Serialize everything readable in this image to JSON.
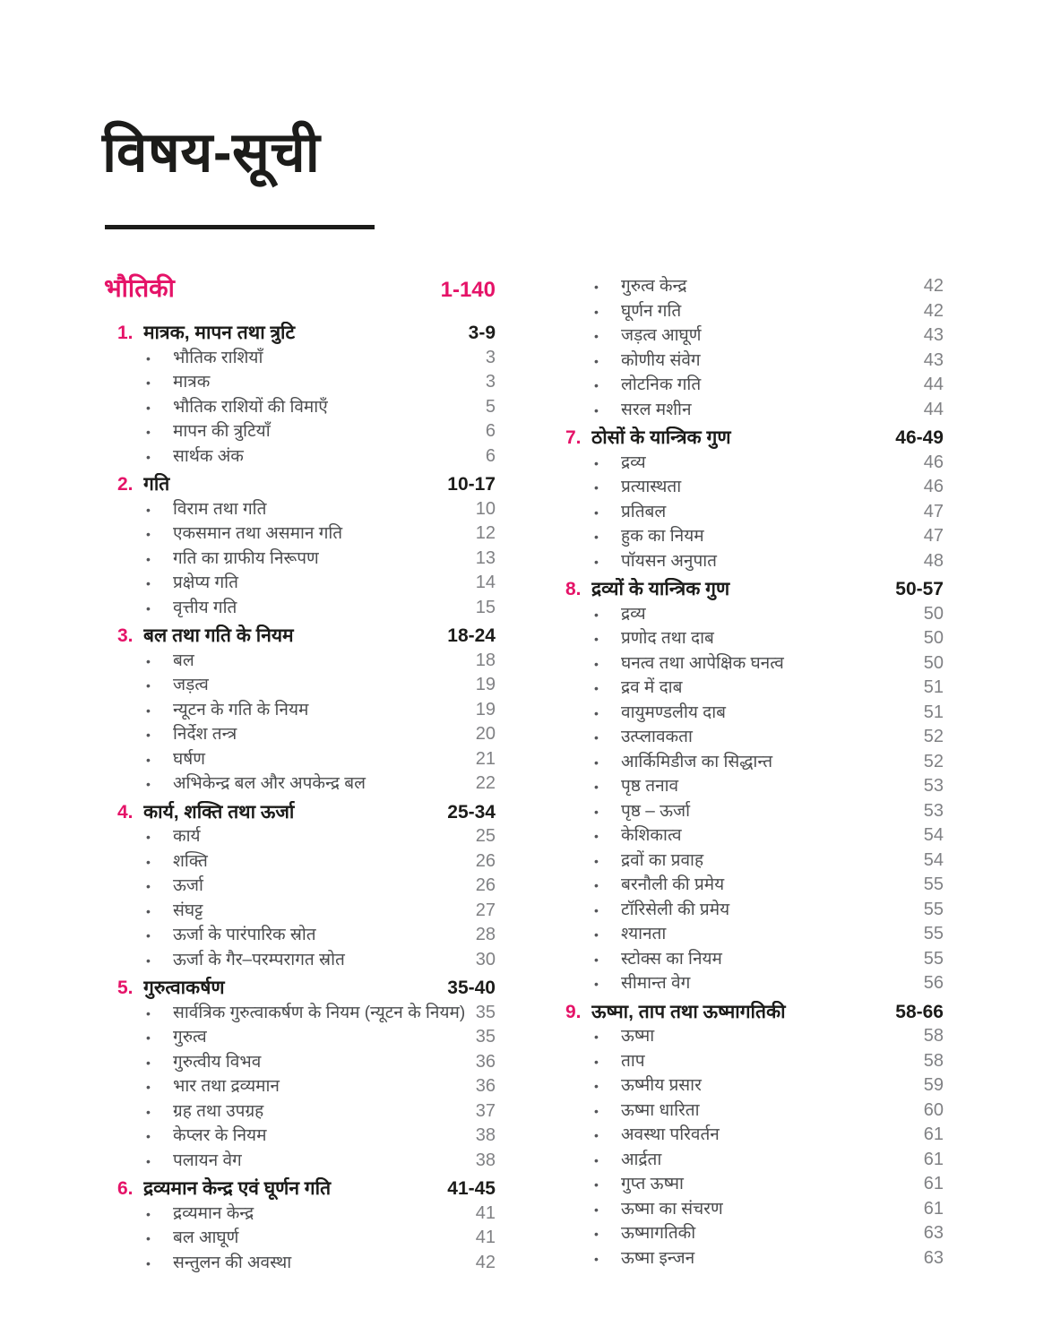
{
  "page_title": "विषय-सूची",
  "bullet_glyph": "•",
  "colors": {
    "accent": "#e51368",
    "heading_text": "#1c1c1a",
    "item_text": "#4b4c4e",
    "item_page_number": "#808184",
    "background": "#ffffff"
  },
  "subject": {
    "label": "भौतिकी",
    "pages": "1-140"
  },
  "left_column": {
    "sections": [
      {
        "num": "1.",
        "title": "मात्रक, मापन तथा त्रुटि",
        "pages": "3-9",
        "items": [
          {
            "label": "भौतिक राशियाँ",
            "page": "3"
          },
          {
            "label": "मात्रक",
            "page": "3"
          },
          {
            "label": "भौतिक राशियों की विमाएँ",
            "page": "5"
          },
          {
            "label": "मापन की त्रुटियाँ",
            "page": "6"
          },
          {
            "label": "सार्थक अंक",
            "page": "6"
          }
        ]
      },
      {
        "num": "2.",
        "title": "गति",
        "pages": "10-17",
        "items": [
          {
            "label": "विराम तथा गति",
            "page": "10"
          },
          {
            "label": "एकसमान तथा असमान गति",
            "page": "12"
          },
          {
            "label": "गति का ग्राफीय निरूपण",
            "page": "13"
          },
          {
            "label": "प्रक्षेप्य गति",
            "page": "14"
          },
          {
            "label": "वृत्तीय गति",
            "page": "15"
          }
        ]
      },
      {
        "num": "3.",
        "title": "बल तथा गति के नियम",
        "pages": "18-24",
        "items": [
          {
            "label": "बल",
            "page": "18"
          },
          {
            "label": "जड़त्व",
            "page": "19"
          },
          {
            "label": "न्यूटन के गति के नियम",
            "page": "19"
          },
          {
            "label": "निर्देश तन्त्र",
            "page": "20"
          },
          {
            "label": "घर्षण",
            "page": "21"
          },
          {
            "label": "अभिकेन्द्र बल और अपकेन्द्र बल",
            "page": "22"
          }
        ]
      },
      {
        "num": "4.",
        "title": "कार्य, शक्ति तथा ऊर्जा",
        "pages": "25-34",
        "items": [
          {
            "label": "कार्य",
            "page": "25"
          },
          {
            "label": "शक्ति",
            "page": "26"
          },
          {
            "label": "ऊर्जा",
            "page": "26"
          },
          {
            "label": "संघट्ट",
            "page": "27"
          },
          {
            "label": "ऊर्जा के पारंपारिक स्रोत",
            "page": "28"
          },
          {
            "label": "ऊर्जा के गैर–परम्परागत स्रोत",
            "page": "30"
          }
        ]
      },
      {
        "num": "5.",
        "title": "गुरुत्वाकर्षण",
        "pages": "35-40",
        "items": [
          {
            "label": "सार्वत्रिक गुरुत्वाकर्षण के नियम (न्यूटन के नियम)",
            "page": "35"
          },
          {
            "label": "गुरुत्व",
            "page": "35"
          },
          {
            "label": "गुरुत्वीय विभव",
            "page": "36"
          },
          {
            "label": "भार तथा द्रव्यमान",
            "page": "36"
          },
          {
            "label": "ग्रह तथा उपग्रह",
            "page": "37"
          },
          {
            "label": "केप्लर के नियम",
            "page": "38"
          },
          {
            "label": "पलायन वेग",
            "page": "38"
          }
        ]
      },
      {
        "num": "6.",
        "title": "द्रव्यमान केन्द्र एवं घूर्णन गति",
        "pages": "41-45",
        "items": [
          {
            "label": "द्रव्यमान केन्द्र",
            "page": "41"
          },
          {
            "label": "बल आघूर्ण",
            "page": "41"
          },
          {
            "label": "सन्तुलन की अवस्था",
            "page": "42"
          }
        ]
      }
    ]
  },
  "right_column": {
    "lead_items": [
      {
        "label": "गुरुत्व केन्द्र",
        "page": "42"
      },
      {
        "label": "घूर्णन गति",
        "page": "42"
      },
      {
        "label": "जड़त्व आघूर्ण",
        "page": "43"
      },
      {
        "label": "कोणीय संवेग",
        "page": "43"
      },
      {
        "label": "लोटनिक गति",
        "page": "44"
      },
      {
        "label": "सरल मशीन",
        "page": "44"
      }
    ],
    "sections": [
      {
        "num": "7.",
        "title": "ठोसों के यान्त्रिक गुण",
        "pages": "46-49",
        "items": [
          {
            "label": "द्रव्य",
            "page": "46"
          },
          {
            "label": "प्रत्यास्थता",
            "page": "46"
          },
          {
            "label": "प्रतिबल",
            "page": "47"
          },
          {
            "label": "हुक का नियम",
            "page": "47"
          },
          {
            "label": "पॉयसन अनुपात",
            "page": "48"
          }
        ]
      },
      {
        "num": "8.",
        "title": "द्रव्यों के यान्त्रिक गुण",
        "pages": "50-57",
        "items": [
          {
            "label": "द्रव्य",
            "page": "50"
          },
          {
            "label": "प्रणोद तथा दाब",
            "page": "50"
          },
          {
            "label": "घनत्व तथा आपेक्षिक घनत्व",
            "page": "50"
          },
          {
            "label": "द्रव में दाब",
            "page": "51"
          },
          {
            "label": "वायुमण्डलीय दाब",
            "page": "51"
          },
          {
            "label": "उत्प्लावकता",
            "page": "52"
          },
          {
            "label": "आर्किमिडीज का सिद्धान्त",
            "page": "52"
          },
          {
            "label": "पृष्ठ तनाव",
            "page": "53"
          },
          {
            "label": "पृष्ठ – ऊर्जा",
            "page": "53"
          },
          {
            "label": "केशिकात्व",
            "page": "54"
          },
          {
            "label": "द्रवों का प्रवाह",
            "page": "54"
          },
          {
            "label": "बरनौली की प्रमेय",
            "page": "55"
          },
          {
            "label": "टॉरिसेली की प्रमेय",
            "page": "55"
          },
          {
            "label": "श्यानता",
            "page": "55"
          },
          {
            "label": "स्टोक्स का नियम",
            "page": "55"
          },
          {
            "label": "सीमान्त वेग",
            "page": "56"
          }
        ]
      },
      {
        "num": "9.",
        "title": "ऊष्मा, ताप तथा ऊष्मागतिकी",
        "pages": "58-66",
        "items": [
          {
            "label": "ऊष्मा",
            "page": "58"
          },
          {
            "label": "ताप",
            "page": "58"
          },
          {
            "label": "ऊष्मीय प्रसार",
            "page": "59"
          },
          {
            "label": "ऊष्मा धारिता",
            "page": "60"
          },
          {
            "label": "अवस्था परिवर्तन",
            "page": "61"
          },
          {
            "label": "आर्द्रता",
            "page": "61"
          },
          {
            "label": "गुप्त ऊष्मा",
            "page": "61"
          },
          {
            "label": "ऊष्मा का संचरण",
            "page": "61"
          },
          {
            "label": "ऊष्मागतिकी",
            "page": "63"
          },
          {
            "label": "ऊष्मा इन्जन",
            "page": "63"
          }
        ]
      }
    ]
  }
}
